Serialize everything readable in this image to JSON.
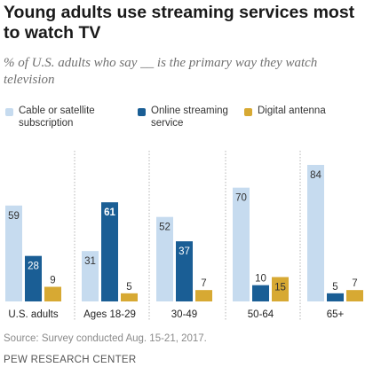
{
  "title": "Young adults use streaming services most to watch TV",
  "subtitle": "% of U.S. adults who say __ is the primary way they watch television",
  "source": "Source: Survey conducted Aug. 15-21, 2017.",
  "organization": "PEW RESEARCH CENTER",
  "colors": {
    "cable": "#c6dbef",
    "streaming": "#1a5e95",
    "antenna": "#d7a933"
  },
  "chart_data": {
    "type": "bar",
    "title": "Young adults use streaming services most to watch TV",
    "subtitle": "% of U.S. adults who say __ is the primary way they watch television",
    "categories": [
      "U.S. adults",
      "Ages 18-29",
      "30-49",
      "50-64",
      "65+"
    ],
    "series": [
      {
        "name": "Cable or satellite subscription",
        "values": [
          59,
          31,
          52,
          70,
          84
        ]
      },
      {
        "name": "Online streaming service",
        "values": [
          28,
          61,
          37,
          10,
          5
        ]
      },
      {
        "name": "Digital antenna",
        "values": [
          9,
          5,
          7,
          15,
          7
        ]
      }
    ],
    "legend_position": "top",
    "grid": false,
    "ylim": [
      0,
      90
    ],
    "data_labels": true
  }
}
